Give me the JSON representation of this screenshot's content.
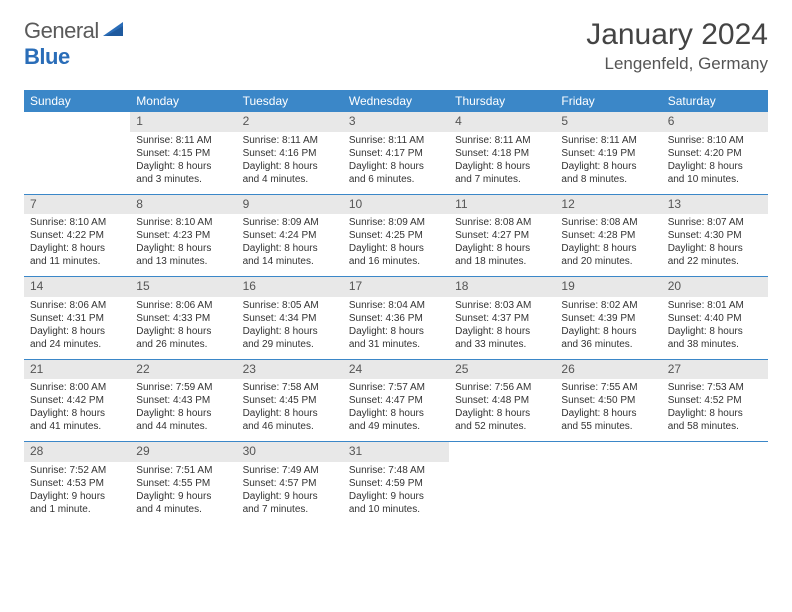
{
  "logo": {
    "text1": "General",
    "text2": "Blue"
  },
  "title": "January 2024",
  "location": "Lengenfeld, Germany",
  "colors": {
    "header_bg": "#3b87c8",
    "header_fg": "#ffffff",
    "daynum_bg": "#e8e8e8",
    "sep": "#3b87c8",
    "logo_gray": "#5a5a5a",
    "logo_blue": "#2a6db8"
  },
  "weekdays": [
    "Sunday",
    "Monday",
    "Tuesday",
    "Wednesday",
    "Thursday",
    "Friday",
    "Saturday"
  ],
  "weeks": [
    [
      {
        "n": "",
        "lines": []
      },
      {
        "n": "1",
        "lines": [
          "Sunrise: 8:11 AM",
          "Sunset: 4:15 PM",
          "Daylight: 8 hours",
          "and 3 minutes."
        ]
      },
      {
        "n": "2",
        "lines": [
          "Sunrise: 8:11 AM",
          "Sunset: 4:16 PM",
          "Daylight: 8 hours",
          "and 4 minutes."
        ]
      },
      {
        "n": "3",
        "lines": [
          "Sunrise: 8:11 AM",
          "Sunset: 4:17 PM",
          "Daylight: 8 hours",
          "and 6 minutes."
        ]
      },
      {
        "n": "4",
        "lines": [
          "Sunrise: 8:11 AM",
          "Sunset: 4:18 PM",
          "Daylight: 8 hours",
          "and 7 minutes."
        ]
      },
      {
        "n": "5",
        "lines": [
          "Sunrise: 8:11 AM",
          "Sunset: 4:19 PM",
          "Daylight: 8 hours",
          "and 8 minutes."
        ]
      },
      {
        "n": "6",
        "lines": [
          "Sunrise: 8:10 AM",
          "Sunset: 4:20 PM",
          "Daylight: 8 hours",
          "and 10 minutes."
        ]
      }
    ],
    [
      {
        "n": "7",
        "lines": [
          "Sunrise: 8:10 AM",
          "Sunset: 4:22 PM",
          "Daylight: 8 hours",
          "and 11 minutes."
        ]
      },
      {
        "n": "8",
        "lines": [
          "Sunrise: 8:10 AM",
          "Sunset: 4:23 PM",
          "Daylight: 8 hours",
          "and 13 minutes."
        ]
      },
      {
        "n": "9",
        "lines": [
          "Sunrise: 8:09 AM",
          "Sunset: 4:24 PM",
          "Daylight: 8 hours",
          "and 14 minutes."
        ]
      },
      {
        "n": "10",
        "lines": [
          "Sunrise: 8:09 AM",
          "Sunset: 4:25 PM",
          "Daylight: 8 hours",
          "and 16 minutes."
        ]
      },
      {
        "n": "11",
        "lines": [
          "Sunrise: 8:08 AM",
          "Sunset: 4:27 PM",
          "Daylight: 8 hours",
          "and 18 minutes."
        ]
      },
      {
        "n": "12",
        "lines": [
          "Sunrise: 8:08 AM",
          "Sunset: 4:28 PM",
          "Daylight: 8 hours",
          "and 20 minutes."
        ]
      },
      {
        "n": "13",
        "lines": [
          "Sunrise: 8:07 AM",
          "Sunset: 4:30 PM",
          "Daylight: 8 hours",
          "and 22 minutes."
        ]
      }
    ],
    [
      {
        "n": "14",
        "lines": [
          "Sunrise: 8:06 AM",
          "Sunset: 4:31 PM",
          "Daylight: 8 hours",
          "and 24 minutes."
        ]
      },
      {
        "n": "15",
        "lines": [
          "Sunrise: 8:06 AM",
          "Sunset: 4:33 PM",
          "Daylight: 8 hours",
          "and 26 minutes."
        ]
      },
      {
        "n": "16",
        "lines": [
          "Sunrise: 8:05 AM",
          "Sunset: 4:34 PM",
          "Daylight: 8 hours",
          "and 29 minutes."
        ]
      },
      {
        "n": "17",
        "lines": [
          "Sunrise: 8:04 AM",
          "Sunset: 4:36 PM",
          "Daylight: 8 hours",
          "and 31 minutes."
        ]
      },
      {
        "n": "18",
        "lines": [
          "Sunrise: 8:03 AM",
          "Sunset: 4:37 PM",
          "Daylight: 8 hours",
          "and 33 minutes."
        ]
      },
      {
        "n": "19",
        "lines": [
          "Sunrise: 8:02 AM",
          "Sunset: 4:39 PM",
          "Daylight: 8 hours",
          "and 36 minutes."
        ]
      },
      {
        "n": "20",
        "lines": [
          "Sunrise: 8:01 AM",
          "Sunset: 4:40 PM",
          "Daylight: 8 hours",
          "and 38 minutes."
        ]
      }
    ],
    [
      {
        "n": "21",
        "lines": [
          "Sunrise: 8:00 AM",
          "Sunset: 4:42 PM",
          "Daylight: 8 hours",
          "and 41 minutes."
        ]
      },
      {
        "n": "22",
        "lines": [
          "Sunrise: 7:59 AM",
          "Sunset: 4:43 PM",
          "Daylight: 8 hours",
          "and 44 minutes."
        ]
      },
      {
        "n": "23",
        "lines": [
          "Sunrise: 7:58 AM",
          "Sunset: 4:45 PM",
          "Daylight: 8 hours",
          "and 46 minutes."
        ]
      },
      {
        "n": "24",
        "lines": [
          "Sunrise: 7:57 AM",
          "Sunset: 4:47 PM",
          "Daylight: 8 hours",
          "and 49 minutes."
        ]
      },
      {
        "n": "25",
        "lines": [
          "Sunrise: 7:56 AM",
          "Sunset: 4:48 PM",
          "Daylight: 8 hours",
          "and 52 minutes."
        ]
      },
      {
        "n": "26",
        "lines": [
          "Sunrise: 7:55 AM",
          "Sunset: 4:50 PM",
          "Daylight: 8 hours",
          "and 55 minutes."
        ]
      },
      {
        "n": "27",
        "lines": [
          "Sunrise: 7:53 AM",
          "Sunset: 4:52 PM",
          "Daylight: 8 hours",
          "and 58 minutes."
        ]
      }
    ],
    [
      {
        "n": "28",
        "lines": [
          "Sunrise: 7:52 AM",
          "Sunset: 4:53 PM",
          "Daylight: 9 hours",
          "and 1 minute."
        ]
      },
      {
        "n": "29",
        "lines": [
          "Sunrise: 7:51 AM",
          "Sunset: 4:55 PM",
          "Daylight: 9 hours",
          "and 4 minutes."
        ]
      },
      {
        "n": "30",
        "lines": [
          "Sunrise: 7:49 AM",
          "Sunset: 4:57 PM",
          "Daylight: 9 hours",
          "and 7 minutes."
        ]
      },
      {
        "n": "31",
        "lines": [
          "Sunrise: 7:48 AM",
          "Sunset: 4:59 PM",
          "Daylight: 9 hours",
          "and 10 minutes."
        ]
      },
      {
        "n": "",
        "lines": []
      },
      {
        "n": "",
        "lines": []
      },
      {
        "n": "",
        "lines": []
      }
    ]
  ]
}
